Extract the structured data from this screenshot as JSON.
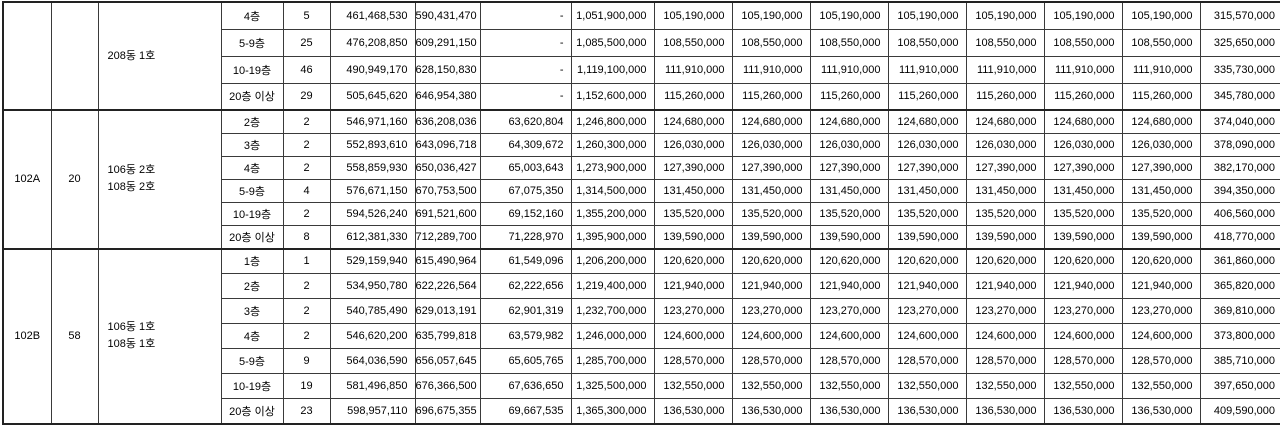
{
  "colors": {
    "background": "#ffffff",
    "border": "#222222",
    "text": "#000000"
  },
  "table": {
    "sections": [
      {
        "block": "",
        "unit_count": "",
        "building_lines": [
          "208동 1호"
        ],
        "rows": [
          {
            "floor": "4층",
            "count": "5",
            "prices": [
              "461,468,530",
              "590,431,470",
              "-",
              "1,051,900,000",
              "105,190,000",
              "105,190,000",
              "105,190,000",
              "105,190,000",
              "105,190,000",
              "105,190,000",
              "105,190,000",
              "315,570,000"
            ]
          },
          {
            "floor": "5-9층",
            "count": "25",
            "prices": [
              "476,208,850",
              "609,291,150",
              "-",
              "1,085,500,000",
              "108,550,000",
              "108,550,000",
              "108,550,000",
              "108,550,000",
              "108,550,000",
              "108,550,000",
              "108,550,000",
              "325,650,000"
            ]
          },
          {
            "floor": "10-19층",
            "count": "46",
            "prices": [
              "490,949,170",
              "628,150,830",
              "-",
              "1,119,100,000",
              "111,910,000",
              "111,910,000",
              "111,910,000",
              "111,910,000",
              "111,910,000",
              "111,910,000",
              "111,910,000",
              "335,730,000"
            ]
          },
          {
            "floor": "20층 이상",
            "count": "29",
            "prices": [
              "505,645,620",
              "646,954,380",
              "-",
              "1,152,600,000",
              "115,260,000",
              "115,260,000",
              "115,260,000",
              "115,260,000",
              "115,260,000",
              "115,260,000",
              "115,260,000",
              "345,780,000"
            ]
          }
        ]
      },
      {
        "block": "102A",
        "unit_count": "20",
        "building_lines": [
          "106동 2호",
          "108동 2호"
        ],
        "rows": [
          {
            "floor": "2층",
            "count": "2",
            "prices": [
              "546,971,160",
              "636,208,036",
              "63,620,804",
              "1,246,800,000",
              "124,680,000",
              "124,680,000",
              "124,680,000",
              "124,680,000",
              "124,680,000",
              "124,680,000",
              "124,680,000",
              "374,040,000"
            ]
          },
          {
            "floor": "3층",
            "count": "2",
            "prices": [
              "552,893,610",
              "643,096,718",
              "64,309,672",
              "1,260,300,000",
              "126,030,000",
              "126,030,000",
              "126,030,000",
              "126,030,000",
              "126,030,000",
              "126,030,000",
              "126,030,000",
              "378,090,000"
            ]
          },
          {
            "floor": "4층",
            "count": "2",
            "prices": [
              "558,859,930",
              "650,036,427",
              "65,003,643",
              "1,273,900,000",
              "127,390,000",
              "127,390,000",
              "127,390,000",
              "127,390,000",
              "127,390,000",
              "127,390,000",
              "127,390,000",
              "382,170,000"
            ]
          },
          {
            "floor": "5-9층",
            "count": "4",
            "prices": [
              "576,671,150",
              "670,753,500",
              "67,075,350",
              "1,314,500,000",
              "131,450,000",
              "131,450,000",
              "131,450,000",
              "131,450,000",
              "131,450,000",
              "131,450,000",
              "131,450,000",
              "394,350,000"
            ]
          },
          {
            "floor": "10-19층",
            "count": "2",
            "prices": [
              "594,526,240",
              "691,521,600",
              "69,152,160",
              "1,355,200,000",
              "135,520,000",
              "135,520,000",
              "135,520,000",
              "135,520,000",
              "135,520,000",
              "135,520,000",
              "135,520,000",
              "406,560,000"
            ]
          },
          {
            "floor": "20층 이상",
            "count": "8",
            "prices": [
              "612,381,330",
              "712,289,700",
              "71,228,970",
              "1,395,900,000",
              "139,590,000",
              "139,590,000",
              "139,590,000",
              "139,590,000",
              "139,590,000",
              "139,590,000",
              "139,590,000",
              "418,770,000"
            ]
          }
        ]
      },
      {
        "block": "102B",
        "unit_count": "58",
        "building_lines": [
          "106동 1호",
          "108동 1호"
        ],
        "rows": [
          {
            "floor": "1층",
            "count": "1",
            "prices": [
              "529,159,940",
              "615,490,964",
              "61,549,096",
              "1,206,200,000",
              "120,620,000",
              "120,620,000",
              "120,620,000",
              "120,620,000",
              "120,620,000",
              "120,620,000",
              "120,620,000",
              "361,860,000"
            ]
          },
          {
            "floor": "2층",
            "count": "2",
            "prices": [
              "534,950,780",
              "622,226,564",
              "62,222,656",
              "1,219,400,000",
              "121,940,000",
              "121,940,000",
              "121,940,000",
              "121,940,000",
              "121,940,000",
              "121,940,000",
              "121,940,000",
              "365,820,000"
            ]
          },
          {
            "floor": "3층",
            "count": "2",
            "prices": [
              "540,785,490",
              "629,013,191",
              "62,901,319",
              "1,232,700,000",
              "123,270,000",
              "123,270,000",
              "123,270,000",
              "123,270,000",
              "123,270,000",
              "123,270,000",
              "123,270,000",
              "369,810,000"
            ]
          },
          {
            "floor": "4층",
            "count": "2",
            "prices": [
              "546,620,200",
              "635,799,818",
              "63,579,982",
              "1,246,000,000",
              "124,600,000",
              "124,600,000",
              "124,600,000",
              "124,600,000",
              "124,600,000",
              "124,600,000",
              "124,600,000",
              "373,800,000"
            ]
          },
          {
            "floor": "5-9층",
            "count": "9",
            "prices": [
              "564,036,590",
              "656,057,645",
              "65,605,765",
              "1,285,700,000",
              "128,570,000",
              "128,570,000",
              "128,570,000",
              "128,570,000",
              "128,570,000",
              "128,570,000",
              "128,570,000",
              "385,710,000"
            ]
          },
          {
            "floor": "10-19층",
            "count": "19",
            "prices": [
              "581,496,850",
              "676,366,500",
              "67,636,650",
              "1,325,500,000",
              "132,550,000",
              "132,550,000",
              "132,550,000",
              "132,550,000",
              "132,550,000",
              "132,550,000",
              "132,550,000",
              "397,650,000"
            ]
          },
          {
            "floor": "20층 이상",
            "count": "23",
            "prices": [
              "598,957,110",
              "696,675,355",
              "69,667,535",
              "1,365,300,000",
              "136,530,000",
              "136,530,000",
              "136,530,000",
              "136,530,000",
              "136,530,000",
              "136,530,000",
              "136,530,000",
              "409,590,000"
            ]
          }
        ]
      }
    ]
  }
}
